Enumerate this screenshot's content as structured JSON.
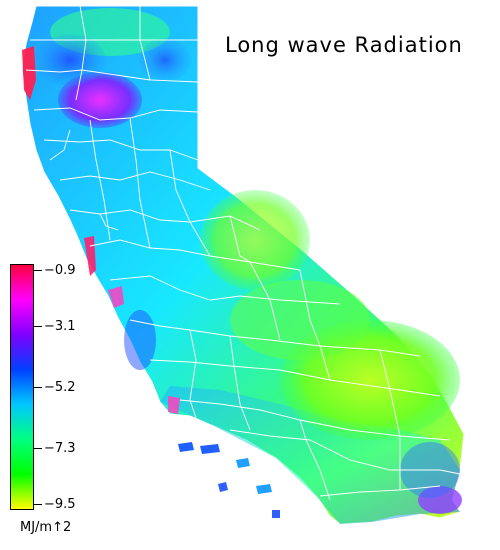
{
  "title": "Long wave Radiation",
  "legend": {
    "labels": [
      "−0.9",
      "−3.1",
      "−5.2",
      "−7.3",
      "−9.5"
    ],
    "units": "MJ/m↑2",
    "colors": [
      "#ff0040",
      "#ff00ff",
      "#8000ff",
      "#0040ff",
      "#00c8ff",
      "#00ff80",
      "#00ff00",
      "#ffff00"
    ]
  },
  "map": {
    "region": "California",
    "colors": {
      "state_fill": "#1ee0ff",
      "county_lines": "#ffffff",
      "high_value": "#ff2060",
      "mid_high": "#ff40ff",
      "mid": "#3050ff",
      "low": "#00ffa0",
      "lowest": "#c0ff20"
    }
  }
}
